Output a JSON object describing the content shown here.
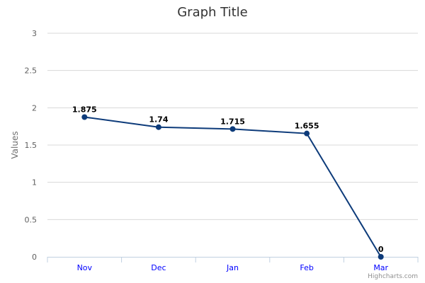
{
  "chart_data": {
    "type": "line",
    "title": "Graph Title",
    "xlabel": "",
    "ylabel": "Values",
    "categories": [
      "Nov",
      "Dec",
      "Jan",
      "Feb",
      "Mar"
    ],
    "series": [
      {
        "values": [
          1.875,
          1.74,
          1.715,
          1.655,
          0
        ],
        "color": "#0d3b7a"
      }
    ],
    "data_labels": [
      "1.875",
      "1.74",
      "1.715",
      "1.655",
      "0"
    ],
    "ylim": [
      0,
      3
    ],
    "yticks": [
      "0",
      "0.5",
      "1",
      "1.5",
      "2",
      "2.5",
      "3"
    ],
    "grid": true,
    "legend": "none",
    "colors": {
      "grid": "#d8d8d8",
      "axis": "#c0d0e0",
      "x_tick_labels": "#0000ff",
      "y_tick_labels": "#606060"
    }
  },
  "credits": "Highcharts.com"
}
